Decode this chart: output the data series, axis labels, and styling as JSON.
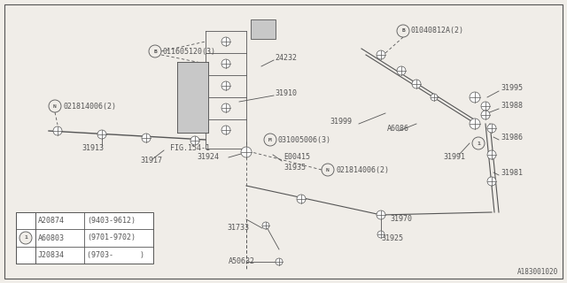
{
  "bg_color": "#f0ede8",
  "diagram_id": "A183001020",
  "legend_rows": [
    [
      "A20874",
      "(9403-9612)"
    ],
    [
      "A60803",
      "(9701-9702)"
    ],
    [
      "J20834",
      "(9703-      )"
    ]
  ]
}
